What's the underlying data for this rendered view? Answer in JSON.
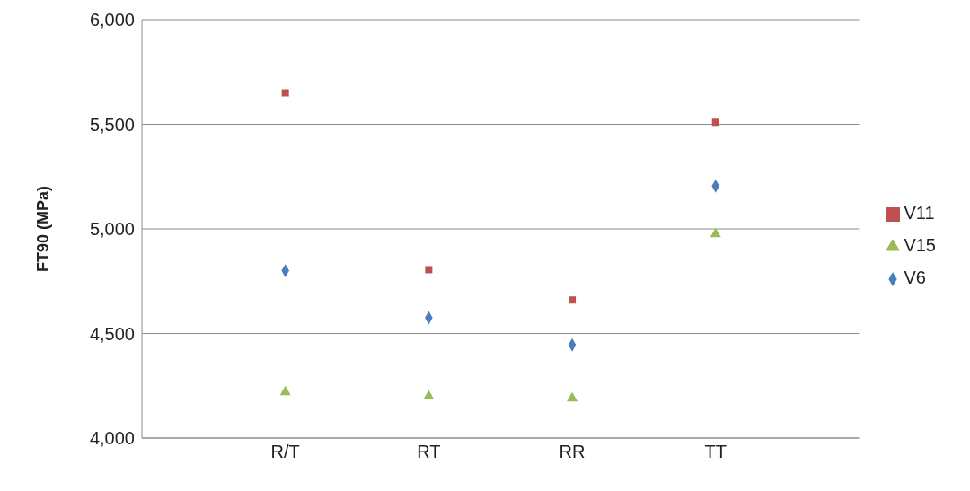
{
  "chart_data": {
    "type": "scatter",
    "ylabel": "FT90 (MPa)",
    "categories": [
      "R/T",
      "RT",
      "RR",
      "TT"
    ],
    "series": [
      {
        "name": "V6",
        "color": "#4a7ebb",
        "marker": "diamond",
        "values": [
          4800,
          4575,
          4445,
          5205
        ]
      },
      {
        "name": "V11",
        "color": "#c0504d",
        "marker": "square",
        "values": [
          5650,
          4805,
          4660,
          5510
        ]
      },
      {
        "name": "V15",
        "color": "#9bbb59",
        "marker": "triangle",
        "values": [
          4220,
          4200,
          4190,
          4975
        ]
      }
    ],
    "ylim": [
      4000,
      6000
    ],
    "yticks": [
      {
        "value": 4000,
        "label": "4,000"
      },
      {
        "value": 4500,
        "label": "4,500"
      },
      {
        "value": 5000,
        "label": "5,000"
      },
      {
        "value": 5500,
        "label": "5,500"
      },
      {
        "value": 6000,
        "label": "6,000"
      }
    ],
    "grid": "y",
    "legend": "right"
  }
}
